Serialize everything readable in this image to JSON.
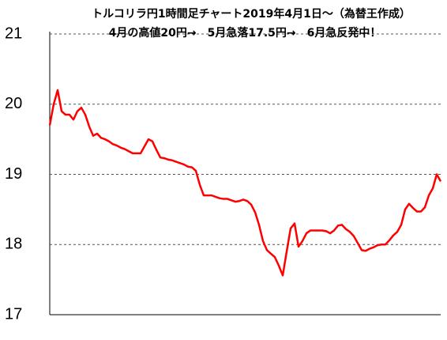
{
  "chart_data": {
    "type": "line",
    "title": "トルコリラ円1時間足チャート2019年4月1日～（為替王作成）",
    "subtitle": "4月の高値20円→　5月急落17.5円→　6月急反発中！",
    "color": "#ff0000",
    "ylim": [
      17,
      21
    ],
    "yticks": [
      17,
      18,
      19,
      20,
      21
    ],
    "grid": true,
    "values": [
      19.7,
      20.0,
      20.2,
      19.9,
      19.85,
      19.85,
      19.78,
      19.9,
      19.95,
      19.85,
      19.68,
      19.55,
      19.58,
      19.52,
      19.5,
      19.47,
      19.43,
      19.41,
      19.38,
      19.36,
      19.33,
      19.3,
      19.3,
      19.3,
      19.4,
      19.5,
      19.47,
      19.35,
      19.24,
      19.23,
      19.21,
      19.2,
      19.18,
      19.16,
      19.14,
      19.11,
      19.1,
      19.05,
      18.85,
      18.7,
      18.7,
      18.7,
      18.68,
      18.66,
      18.65,
      18.65,
      18.63,
      18.61,
      18.62,
      18.64,
      18.62,
      18.57,
      18.46,
      18.28,
      18.05,
      17.92,
      17.87,
      17.82,
      17.7,
      17.56,
      17.9,
      18.23,
      18.3,
      17.97,
      18.05,
      18.16,
      18.2,
      18.2,
      18.2,
      18.2,
      18.19,
      18.16,
      18.2,
      18.27,
      18.28,
      18.22,
      18.18,
      18.12,
      18.02,
      17.92,
      17.91,
      17.94,
      17.96,
      17.99,
      18.0,
      18.0,
      18.06,
      18.13,
      18.18,
      18.28,
      18.5,
      18.58,
      18.52,
      18.47,
      18.47,
      18.53,
      18.7,
      18.8,
      19.0,
      18.9
    ]
  }
}
